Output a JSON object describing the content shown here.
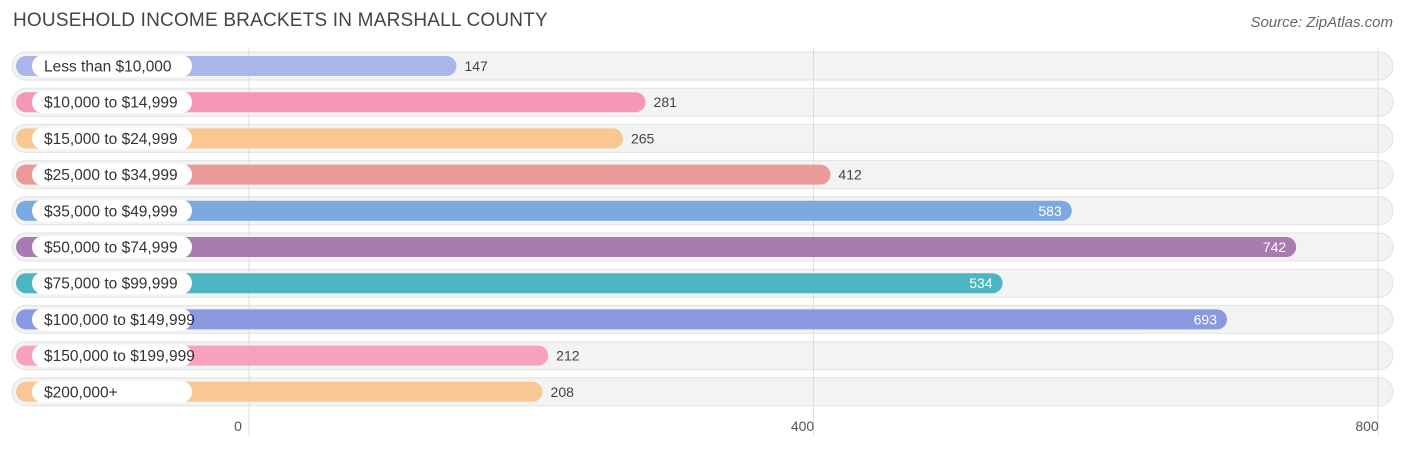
{
  "title": "HOUSEHOLD INCOME BRACKETS IN MARSHALL COUNTY",
  "source": "Source: ZipAtlas.com",
  "chart_data": {
    "type": "bar",
    "orientation": "horizontal",
    "categories": [
      "Less than $10,000",
      "$10,000 to $14,999",
      "$15,000 to $24,999",
      "$25,000 to $34,999",
      "$35,000 to $49,999",
      "$50,000 to $74,999",
      "$75,000 to $99,999",
      "$100,000 to $149,999",
      "$150,000 to $199,999",
      "$200,000+"
    ],
    "values": [
      147,
      281,
      265,
      412,
      583,
      742,
      534,
      693,
      212,
      208
    ],
    "colors": [
      "#aab6ea",
      "#f597b7",
      "#f9c790",
      "#ec9a98",
      "#7baae0",
      "#a97bb0",
      "#4bb6c2",
      "#8a98e0",
      "#f6a1bf",
      "#f9c795"
    ],
    "xlim": [
      0,
      800
    ],
    "xticks": [
      0,
      400,
      800
    ],
    "grid": true
  }
}
